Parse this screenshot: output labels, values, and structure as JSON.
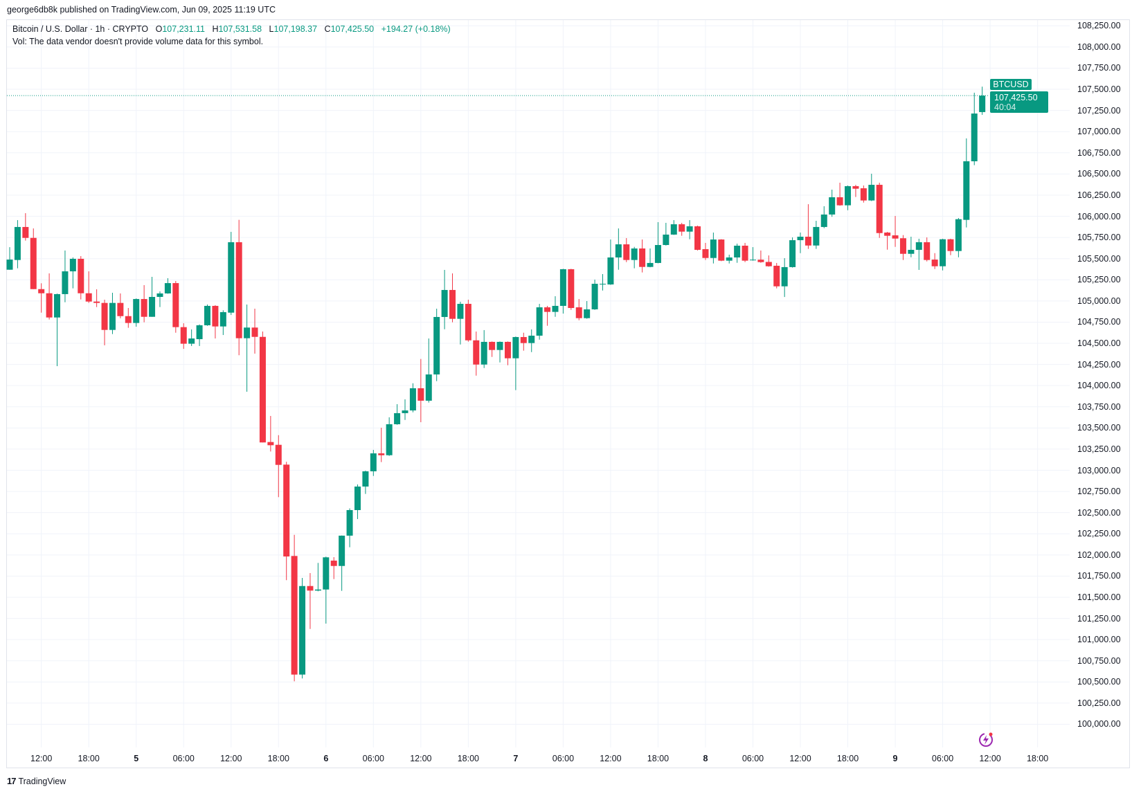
{
  "published": "george6db8k published on TradingView.com, Jun 09, 2025 11:19 UTC",
  "legend": {
    "symbol": "Bitcoin / U.S. Dollar · 1h · CRYPTO",
    "o_label": "O",
    "o": "107,231.11",
    "h_label": "H",
    "h": "107,531.58",
    "l_label": "L",
    "l": "107,198.37",
    "c_label": "C",
    "c": "107,425.50",
    "change": "+194.27 (+0.18%)"
  },
  "volume_note": "Vol: The data vendor doesn't provide volume data for this symbol.",
  "last_price": {
    "symbol": "BTCUSD",
    "price": "107,425.50",
    "countdown": "40:04"
  },
  "footer": {
    "logo_mark": "17",
    "logo_text": "TradingView"
  },
  "colors": {
    "up": "#089981",
    "down": "#F23645",
    "grid": "#f0f3fa",
    "accent": "#089981",
    "replay": "#9c27b0"
  },
  "icons": {
    "replay": "replay-lightning-icon",
    "logo": "tradingview-logo-icon"
  },
  "chart_data": {
    "type": "candlestick",
    "title": "Bitcoin / U.S. Dollar · 1h · CRYPTO",
    "interval": "1h",
    "grid": true,
    "ylim": [
      100000,
      108250
    ],
    "y_ticks": [
      "108,250.00",
      "108,000.00",
      "107,750.00",
      "107,500.00",
      "107,250.00",
      "107,000.00",
      "106,750.00",
      "106,500.00",
      "106,250.00",
      "106,000.00",
      "105,750.00",
      "105,500.00",
      "105,250.00",
      "105,000.00",
      "104,750.00",
      "104,500.00",
      "104,250.00",
      "104,000.00",
      "103,750.00",
      "103,500.00",
      "103,250.00",
      "103,000.00",
      "102,750.00",
      "102,500.00",
      "102,250.00",
      "102,000.00",
      "101,750.00",
      "101,500.00",
      "101,250.00",
      "101,000.00",
      "100,750.00",
      "100,500.00",
      "100,250.00",
      "100,000.00"
    ],
    "x_ticks": [
      "12:00",
      "18:00",
      "5",
      "06:00",
      "12:00",
      "18:00",
      "6",
      "06:00",
      "12:00",
      "18:00",
      "7",
      "06:00",
      "12:00",
      "18:00",
      "8",
      "06:00",
      "12:00",
      "18:00",
      "9",
      "06:00",
      "12:00",
      "18:00"
    ],
    "ohlc_fields": [
      "open",
      "high",
      "low",
      "close"
    ],
    "candles": [
      [
        105369,
        105636,
        105369,
        105489
      ],
      [
        105484,
        105955,
        105386,
        105874
      ],
      [
        105874,
        106037,
        105713,
        105745
      ],
      [
        105745,
        105857,
        105140,
        105140
      ],
      [
        105140,
        105209,
        104862,
        105091
      ],
      [
        105091,
        105326,
        104781,
        104805
      ],
      [
        104805,
        105087,
        104230,
        105081
      ],
      [
        105081,
        105596,
        104985,
        105350
      ],
      [
        105350,
        105514,
        105149,
        105498
      ],
      [
        105498,
        105530,
        105018,
        105091
      ],
      [
        105091,
        105350,
        104977,
        104993
      ],
      [
        104993,
        105138,
        104928,
        104977
      ],
      [
        104977,
        105015,
        104476,
        104658
      ],
      [
        104658,
        105097,
        104609,
        104977
      ],
      [
        104977,
        105089,
        104795,
        104821
      ],
      [
        104821,
        104917,
        104683,
        104740
      ],
      [
        104740,
        105030,
        104696,
        105023
      ],
      [
        105023,
        105187,
        104748,
        104813
      ],
      [
        104813,
        105285,
        104813,
        105048
      ],
      [
        105048,
        105113,
        104928,
        105089
      ],
      [
        105089,
        105269,
        105085,
        105211
      ],
      [
        105211,
        105236,
        104625,
        104691
      ],
      [
        104691,
        104737,
        104434,
        104495
      ],
      [
        104495,
        104664,
        104468,
        104557
      ],
      [
        104549,
        104723,
        104468,
        104713
      ],
      [
        104713,
        104958,
        104707,
        104942
      ],
      [
        104942,
        104950,
        104557,
        104699
      ],
      [
        104699,
        104890,
        104598,
        104868
      ],
      [
        104862,
        105816,
        104835,
        105694
      ],
      [
        105694,
        105958,
        104359,
        104560
      ],
      [
        104560,
        104958,
        103928,
        104686
      ],
      [
        104686,
        104909,
        104378,
        104576
      ],
      [
        104576,
        104639,
        103329,
        103329
      ],
      [
        103334,
        103642,
        103222,
        103296
      ],
      [
        103301,
        103415,
        102683,
        103064
      ],
      [
        103067,
        103100,
        101702,
        101982
      ],
      [
        101988,
        102238,
        100508,
        100587
      ],
      [
        100587,
        101729,
        100541,
        101633
      ],
      [
        101633,
        101786,
        101126,
        101579
      ],
      [
        101579,
        101906,
        101571,
        101592
      ],
      [
        101592,
        101980,
        101189,
        101972
      ],
      [
        101933,
        101974,
        101715,
        101870
      ],
      [
        101870,
        102230,
        101576,
        102228
      ],
      [
        102228,
        102550,
        102091,
        102530
      ],
      [
        102530,
        102833,
        102424,
        102808
      ],
      [
        102808,
        102995,
        102721,
        102988
      ],
      [
        102988,
        103241,
        102933,
        103200
      ],
      [
        103200,
        103503,
        103097,
        103178
      ],
      [
        103178,
        103626,
        103170,
        103544
      ],
      [
        103544,
        103781,
        103538,
        103675
      ],
      [
        103675,
        103838,
        103595,
        103707
      ],
      [
        103707,
        104028,
        103685,
        103969
      ],
      [
        103969,
        104315,
        103568,
        103822
      ],
      [
        103822,
        104557,
        103800,
        104132
      ],
      [
        104132,
        104909,
        104053,
        104811
      ],
      [
        104811,
        105367,
        104666,
        105130
      ],
      [
        105130,
        105326,
        104748,
        104789
      ],
      [
        104789,
        104991,
        104486,
        104966
      ],
      [
        104966,
        105015,
        104519,
        104535
      ],
      [
        104535,
        104639,
        104118,
        104249
      ],
      [
        104249,
        104656,
        104208,
        104517
      ],
      [
        104517,
        104522,
        104339,
        104421
      ],
      [
        104421,
        104522,
        104274,
        104517
      ],
      [
        104517,
        104522,
        104241,
        104323
      ],
      [
        104323,
        104580,
        103947,
        104574
      ],
      [
        104574,
        104625,
        104413,
        104503
      ],
      [
        104503,
        104664,
        104396,
        104590
      ],
      [
        104590,
        104966,
        104543,
        104925
      ],
      [
        104925,
        104942,
        104707,
        104871
      ],
      [
        104871,
        105056,
        104813,
        104942
      ],
      [
        104942,
        105380,
        104851,
        105375
      ],
      [
        105375,
        105380,
        104895,
        104917
      ],
      [
        104925,
        105023,
        104772,
        104797
      ],
      [
        104797,
        104999,
        104790,
        104901
      ],
      [
        104901,
        105252,
        104895,
        105203
      ],
      [
        105195,
        105318,
        105124,
        105203
      ],
      [
        105195,
        105726,
        105190,
        105514
      ],
      [
        105514,
        105857,
        105369,
        105669
      ],
      [
        105669,
        105743,
        105459,
        105484
      ],
      [
        105484,
        105639,
        105386,
        105620
      ],
      [
        105620,
        105726,
        105337,
        105402
      ],
      [
        105402,
        105620,
        105398,
        105449
      ],
      [
        105449,
        105931,
        105445,
        105661
      ],
      [
        105661,
        105923,
        105655,
        105784
      ],
      [
        105784,
        105955,
        105780,
        105906
      ],
      [
        105906,
        105923,
        105770,
        105819
      ],
      [
        105819,
        105955,
        105729,
        105882
      ],
      [
        105882,
        105890,
        105596,
        105604
      ],
      [
        105612,
        105686,
        105484,
        105508
      ],
      [
        105508,
        105808,
        105443,
        105726
      ],
      [
        105726,
        105730,
        105470,
        105476
      ],
      [
        105476,
        105547,
        105443,
        105514
      ],
      [
        105514,
        105677,
        105451,
        105653
      ],
      [
        105653,
        105686,
        105459,
        105476
      ],
      [
        105480,
        105636,
        105476,
        105488
      ],
      [
        105488,
        105596,
        105451,
        105459
      ],
      [
        105461,
        105538,
        105405,
        105410
      ],
      [
        105416,
        105449,
        105149,
        105173
      ],
      [
        105173,
        105506,
        105047,
        105400
      ],
      [
        105400,
        105751,
        105394,
        105718
      ],
      [
        105718,
        105808,
        105565,
        105759
      ],
      [
        105759,
        106143,
        105615,
        105655
      ],
      [
        105655,
        105947,
        105615,
        105874
      ],
      [
        105874,
        106119,
        105860,
        106021
      ],
      [
        106021,
        106315,
        105994,
        106225
      ],
      [
        106225,
        106397,
        106125,
        106130
      ],
      [
        106130,
        106364,
        106072,
        106356
      ],
      [
        106356,
        106372,
        106228,
        106326
      ],
      [
        106331,
        106364,
        106162,
        106187
      ],
      [
        106187,
        106503,
        106180,
        106372
      ],
      [
        106372,
        106397,
        105745,
        105802
      ],
      [
        105808,
        105816,
        105606,
        105770
      ],
      [
        105775,
        106004,
        105639,
        105737
      ],
      [
        105741,
        105778,
        105484,
        105557
      ],
      [
        105557,
        105759,
        105516,
        105604
      ],
      [
        105604,
        105735,
        105367,
        105694
      ],
      [
        105694,
        105751,
        105467,
        105484
      ],
      [
        105489,
        105565,
        105377,
        105410
      ],
      [
        105410,
        105735,
        105361,
        105729
      ],
      [
        105729,
        105735,
        105541,
        105590
      ],
      [
        105590,
        105980,
        105516,
        105966
      ],
      [
        105958,
        106920,
        105868,
        106650
      ],
      [
        106650,
        107460,
        106604,
        107214
      ],
      [
        107231.11,
        107531.58,
        107198.37,
        107425.5
      ]
    ],
    "last_price_line": 107425.5
  }
}
